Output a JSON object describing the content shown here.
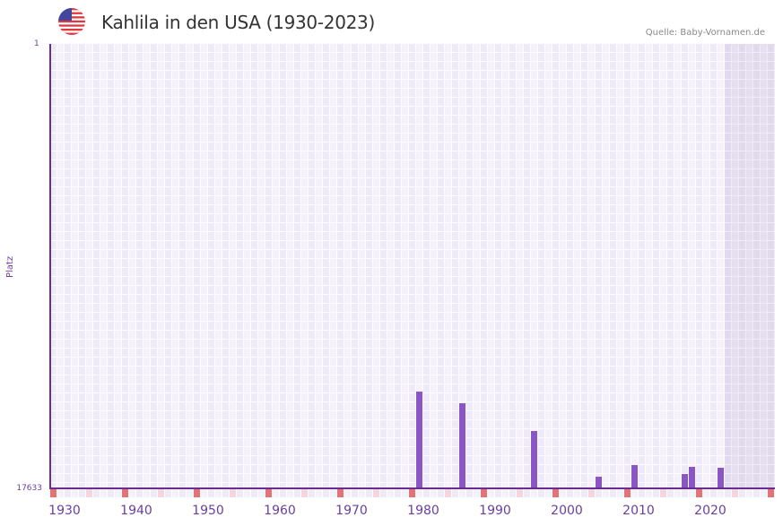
{
  "header": {
    "title": "Kahlila in den USA (1930-2023)",
    "source": "Quelle: Baby-Vornamen.de",
    "flag_icon": "us-flag-icon"
  },
  "axis": {
    "y_title": "Platz",
    "y_top": "1",
    "y_bottom": "17633",
    "x_ticks": [
      "1930",
      "1940",
      "1950",
      "1960",
      "1970",
      "1980",
      "1990",
      "2000",
      "2010",
      "2020"
    ]
  },
  "colors": {
    "bar": "#8b55c6",
    "axis": "#6a2d8f",
    "grid_bg_a": "#efeaf9",
    "grid_bg_b": "#f4f1fb",
    "marker_strong": "#e57373",
    "marker_light": "#f5d5de"
  },
  "chart_data": {
    "type": "bar",
    "title": "Kahlila in den USA (1930-2023)",
    "xlabel": "",
    "ylabel": "Platz",
    "ylim": [
      17633,
      1
    ],
    "y_inverted": true,
    "x_range": [
      1928,
      2028
    ],
    "grid": true,
    "shaded_region": [
      2022,
      2028
    ],
    "categories": [
      "1979",
      "1985",
      "1995",
      "2004",
      "2009",
      "2016",
      "2017",
      "2021"
    ],
    "series": [
      {
        "name": "Platz",
        "values": [
          13800,
          14250,
          15360,
          17170,
          16710,
          17060,
          16780,
          16820
        ]
      }
    ]
  }
}
